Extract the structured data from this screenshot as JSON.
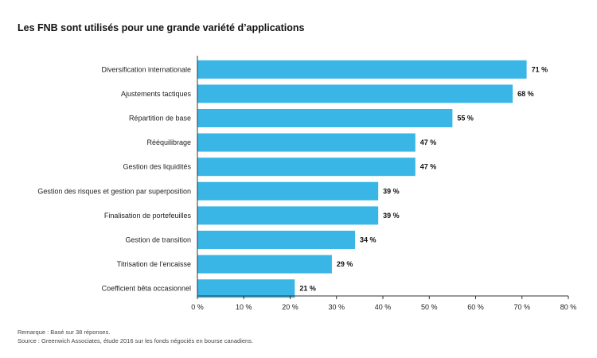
{
  "chart_data": {
    "type": "bar",
    "orientation": "horizontal",
    "title": "Les FNB sont utilisés pour une grande variété d’applications",
    "categories": [
      "Diversification internationale",
      "Ajustements tactiques",
      "Répartition de base",
      "Rééquilibrage",
      "Gestion des liquidités",
      "Gestion des risques et gestion par superposition",
      "Finalisation de portefeuilles",
      "Gestion de transition",
      "Titrisation de l’encaisse",
      "Coefficient bêta occasionnel"
    ],
    "values": [
      71,
      68,
      55,
      47,
      47,
      39,
      39,
      34,
      29,
      21
    ],
    "value_labels": [
      "71 %",
      "68 %",
      "55 %",
      "47 %",
      "47 %",
      "39 %",
      "39 %",
      "34 %",
      "29 %",
      "21 %"
    ],
    "xlim": [
      0,
      80
    ],
    "xticks": [
      0,
      10,
      20,
      30,
      40,
      50,
      60,
      70,
      80
    ],
    "xtick_labels": [
      "0 %",
      "10 %",
      "20 %",
      "30 %",
      "40 %",
      "50 %",
      "60 %",
      "70 %",
      "80 %"
    ],
    "bar_color": "#39b5e6",
    "axis_color": "#333333",
    "grid": false,
    "legend": "none"
  },
  "notes": {
    "remark": "Remarque : Basé sur 38 réponses.",
    "source": "Source : Greenwich Associates, étude 2016 sur les fonds négociés en bourse canadiens."
  }
}
